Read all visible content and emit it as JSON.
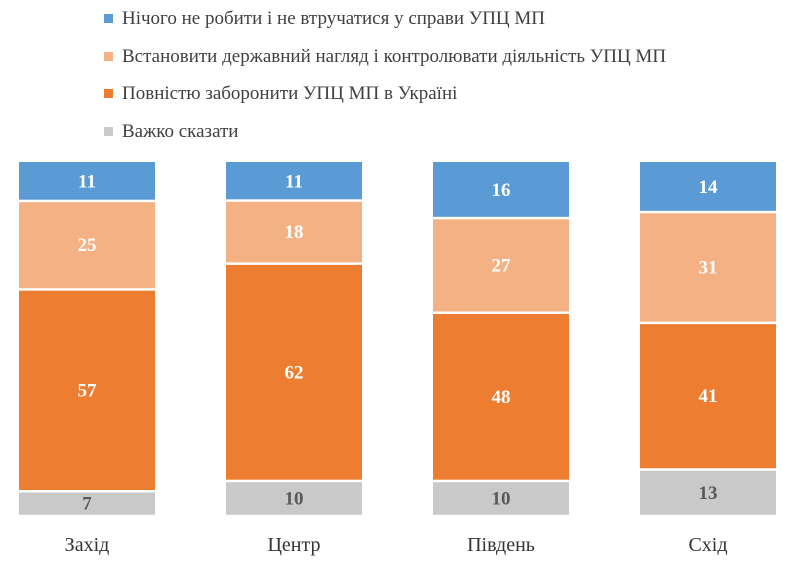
{
  "chart_data": {
    "type": "bar",
    "stacked": true,
    "orientation": "vertical",
    "categories": [
      "Захід",
      "Центр",
      "Південь",
      "Схід"
    ],
    "series": [
      {
        "name": "Нічого не робити і не втручатися у справи УПЦ МП",
        "values": [
          11,
          11,
          16,
          14
        ],
        "color": "#5b9bd5",
        "label_color": "#ffffff"
      },
      {
        "name": "Встановити державний нагляд і контролювати діяльність УПЦ МП",
        "values": [
          25,
          18,
          27,
          31
        ],
        "color": "#f4b183",
        "label_color": "#ffffff"
      },
      {
        "name": "Повністю заборонити УПЦ МП в Україні",
        "values": [
          57,
          62,
          48,
          41
        ],
        "color": "#ed7d31",
        "label_color": "#ffffff"
      },
      {
        "name": "Важко сказати",
        "values": [
          7,
          10,
          10,
          13
        ],
        "color": "#c9c9c9",
        "label_color": "#595959"
      }
    ],
    "legend_position": "top",
    "grid": false,
    "ylim": [
      0,
      100
    ]
  }
}
